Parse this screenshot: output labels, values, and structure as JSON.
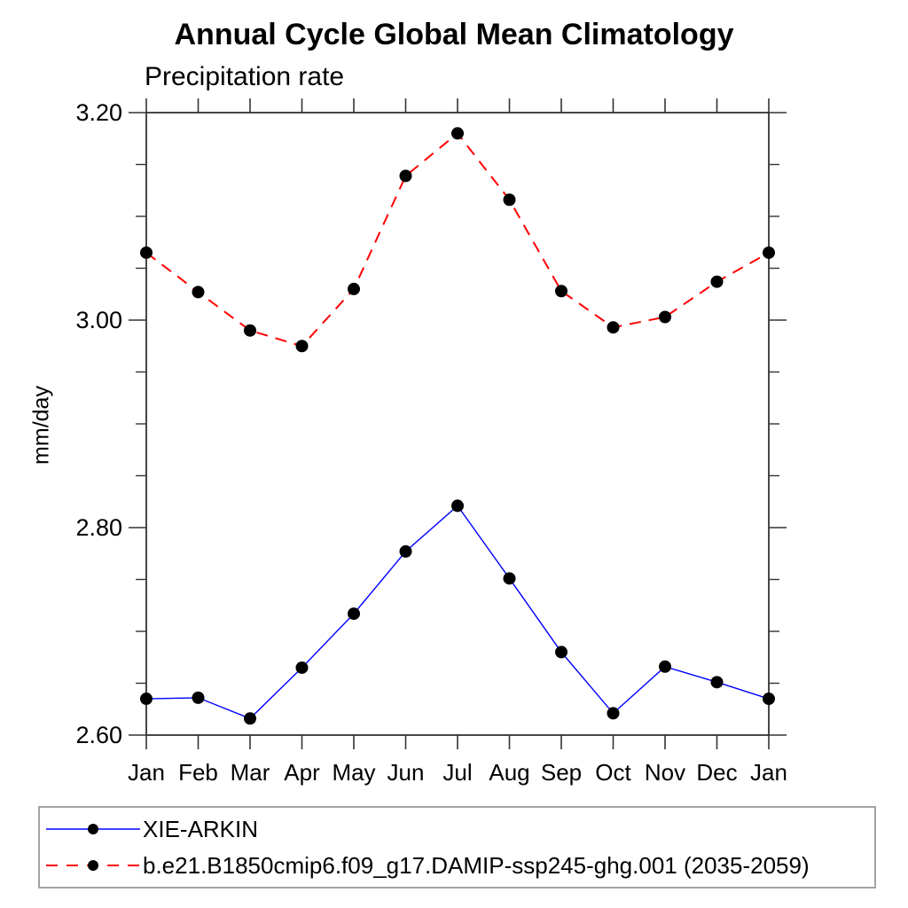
{
  "chart_data": {
    "type": "line",
    "title": "Annual Cycle Global Mean Climatology",
    "subtitle": "Precipitation rate",
    "ylabel": "mm/day",
    "xlabel": "",
    "categories": [
      "Jan",
      "Feb",
      "Mar",
      "Apr",
      "May",
      "Jun",
      "Jul",
      "Aug",
      "Sep",
      "Oct",
      "Nov",
      "Dec",
      "Jan"
    ],
    "series": [
      {
        "name": "XIE-ARKIN",
        "color": "#0000ff",
        "line_style": "solid",
        "line_width": 1.4,
        "marker": "filled-circle",
        "marker_color": "#000000",
        "values": [
          2.635,
          2.636,
          2.616,
          2.665,
          2.717,
          2.777,
          2.821,
          2.751,
          2.68,
          2.621,
          2.666,
          2.651,
          2.635
        ]
      },
      {
        "name": "b.e21.B1850cmip6.f09_g17.DAMIP-ssp245-ghg.001 (2035-2059)",
        "color": "#ff0000",
        "line_style": "dashed",
        "line_width": 2,
        "marker": "filled-circle",
        "marker_color": "#000000",
        "values": [
          3.065,
          3.027,
          2.99,
          2.975,
          3.03,
          3.139,
          3.18,
          3.116,
          3.028,
          2.993,
          3.003,
          3.037,
          3.065
        ]
      }
    ],
    "ylim": [
      2.6,
      3.2
    ],
    "yticks": {
      "major": [
        2.6,
        2.8,
        3.0,
        3.2
      ],
      "major_labels": [
        "2.60",
        "2.80",
        "3.00",
        "3.20"
      ],
      "minor_step": 0.05
    },
    "axes_frame": "box",
    "grid": false,
    "legend_position": "bottom",
    "axis_color": "#333333"
  }
}
